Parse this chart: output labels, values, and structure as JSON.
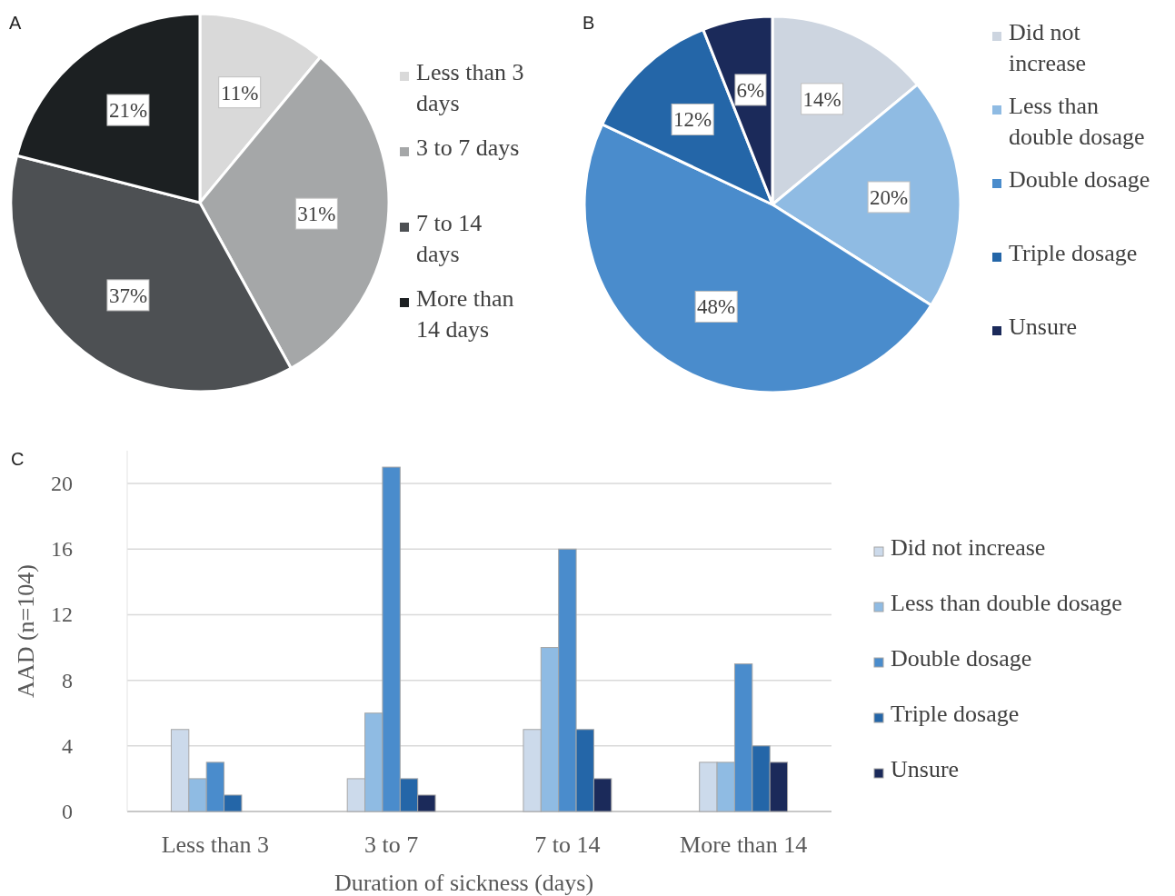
{
  "chart_data": [
    {
      "type": "pie",
      "title": "A",
      "categories": [
        "Less than 3 days",
        "3 to 7 days",
        "7 to 14 days",
        "More than 14 days"
      ],
      "values": [
        11,
        31,
        37,
        21
      ],
      "value_labels": [
        "11%",
        "31%",
        "37%",
        "21%"
      ],
      "colors": [
        "#d9d9d9",
        "#a5a7a8",
        "#4d5053",
        "#1c2022"
      ],
      "legend": "right"
    },
    {
      "type": "pie",
      "title": "B",
      "categories": [
        "Did not increase",
        "Less than double dosage",
        "Double dosage",
        "Triple dosage",
        "Unsure"
      ],
      "values": [
        14,
        20,
        48,
        12,
        6
      ],
      "value_labels": [
        "14%",
        "20%",
        "48%",
        "12%",
        "6%"
      ],
      "colors": [
        "#cdd5e0",
        "#8fbbe3",
        "#4a8ccc",
        "#2466a8",
        "#1b2a5a"
      ],
      "legend": "right"
    },
    {
      "type": "bar",
      "title": "C",
      "categories": [
        "Less than 3",
        "3 to 7",
        "7 to 14",
        "More than 14"
      ],
      "xlabel": "Duration of sickness (days)",
      "ylabel": "AAD (n=104)",
      "ylim": [
        0,
        22
      ],
      "yticks": [
        0,
        4,
        8,
        12,
        16,
        20
      ],
      "grid": "y",
      "legend": "right",
      "series": [
        {
          "name": "Did not increase",
          "color": "#ccdaeb",
          "values": [
            5,
            2,
            5,
            3
          ]
        },
        {
          "name": "Less than double dosage",
          "color": "#8fbbe3",
          "values": [
            2,
            6,
            10,
            3
          ]
        },
        {
          "name": "Double dosage",
          "color": "#4a8ccc",
          "values": [
            3,
            21,
            16,
            9
          ]
        },
        {
          "name": "Triple dosage",
          "color": "#2466a8",
          "values": [
            1,
            2,
            5,
            4
          ]
        },
        {
          "name": "Unsure",
          "color": "#1b2a5a",
          "values": [
            0,
            1,
            2,
            3
          ]
        }
      ]
    }
  ]
}
